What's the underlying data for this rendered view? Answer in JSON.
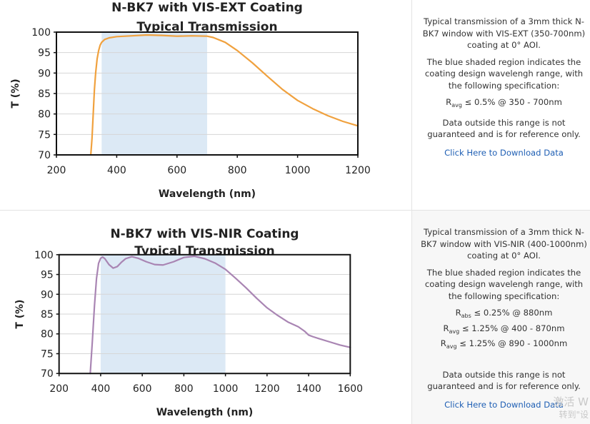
{
  "chart_data": [
    {
      "type": "line",
      "title_lines": [
        "N-BK7 with VIS-EXT Coating",
        "Typical Transmission"
      ],
      "xlabel": "Wavelength (nm)",
      "ylabel": "T (%)",
      "xlim": [
        200,
        1200
      ],
      "ylim": [
        70,
        100
      ],
      "xticks": [
        200,
        400,
        600,
        800,
        1000,
        1200
      ],
      "yticks": [
        70,
        75,
        80,
        85,
        90,
        95,
        100
      ],
      "grid": true,
      "shaded_region": [
        350,
        700
      ],
      "shade_color": "#dce9f5",
      "line_color": "#f0a13e",
      "series": [
        {
          "name": "VIS-EXT",
          "x": [
            314,
            318,
            322,
            326,
            330,
            335,
            340,
            345,
            350,
            360,
            375,
            400,
            450,
            500,
            550,
            600,
            650,
            700,
            720,
            760,
            800,
            850,
            900,
            950,
            1000,
            1050,
            1100,
            1150,
            1200
          ],
          "y": [
            70,
            74,
            80,
            86,
            90,
            93.5,
            95.5,
            96.8,
            97.5,
            98.2,
            98.6,
            98.9,
            99.1,
            99.3,
            99.2,
            99.0,
            99.1,
            99.0,
            98.7,
            97.5,
            95.5,
            92.5,
            89.2,
            86.0,
            83.3,
            81.3,
            79.6,
            78.2,
            77.1
          ]
        }
      ]
    },
    {
      "type": "line",
      "title_lines": [
        "N-BK7 with VIS-NIR Coating",
        "Typical Transmission"
      ],
      "xlabel": "Wavelength (nm)",
      "ylabel": "T (%)",
      "xlim": [
        200,
        1600
      ],
      "ylim": [
        70,
        100
      ],
      "xticks": [
        200,
        400,
        600,
        800,
        1000,
        1200,
        1400,
        1600
      ],
      "yticks": [
        70,
        75,
        80,
        85,
        90,
        95,
        100
      ],
      "grid": true,
      "shaded_region": [
        400,
        1000
      ],
      "shade_color": "#dce9f5",
      "line_color": "#a985b3",
      "series": [
        {
          "name": "VIS-NIR",
          "x": [
            350,
            360,
            370,
            380,
            390,
            400,
            410,
            420,
            440,
            460,
            480,
            500,
            520,
            550,
            580,
            620,
            660,
            700,
            750,
            800,
            850,
            900,
            950,
            1000,
            1050,
            1100,
            1150,
            1200,
            1250,
            1300,
            1350,
            1380,
            1400,
            1420,
            1450,
            1500,
            1550,
            1600
          ],
          "y": [
            70,
            78,
            87,
            94,
            97.8,
            99.1,
            99.4,
            99.0,
            97.5,
            96.6,
            97.0,
            98.1,
            99.0,
            99.5,
            99.1,
            98.2,
            97.5,
            97.4,
            98.2,
            99.3,
            99.6,
            99.0,
            97.9,
            96.3,
            94.0,
            91.6,
            89.0,
            86.6,
            84.7,
            83.0,
            81.8,
            80.7,
            79.7,
            79.3,
            78.8,
            78.0,
            77.2,
            76.6
          ]
        }
      ]
    }
  ],
  "panels": [
    {
      "description": "Typical transmission of a 3mm thick N-BK7 window with VIS-EXT (350-700nm) coating at 0° AOI.",
      "shade_note": "The blue shaded region indicates the coating design wavelengh range, with the following specification:",
      "specs": [
        {
          "symbol": "R",
          "sub": "avg",
          "text": "≤ 0.5% @ 350 - 700nm"
        }
      ],
      "disclaimer": "Data outside this range is not guaranteed and is for reference only.",
      "download_label": "Click Here to Download Data"
    },
    {
      "description": "Typical transmission of a 3mm thick N-BK7 window with VIS-NIR (400-1000nm) coating at 0° AOI.",
      "shade_note": "The blue shaded region indicates the coating design wavelengh range, with the following specification:",
      "specs": [
        {
          "symbol": "R",
          "sub": "abs",
          "text": "≤ 0.25% @ 880nm"
        },
        {
          "symbol": "R",
          "sub": "avg",
          "text": "≤ 1.25% @ 400 - 870nm"
        },
        {
          "symbol": "R",
          "sub": "avg",
          "text": "≤ 1.25% @ 890 - 1000nm"
        }
      ],
      "disclaimer": "Data outside this range is not guaranteed and is for reference only.",
      "download_label": "Click Here to Download Data"
    }
  ],
  "watermark": {
    "line1": "激活 W",
    "line2": "转到\"设"
  }
}
